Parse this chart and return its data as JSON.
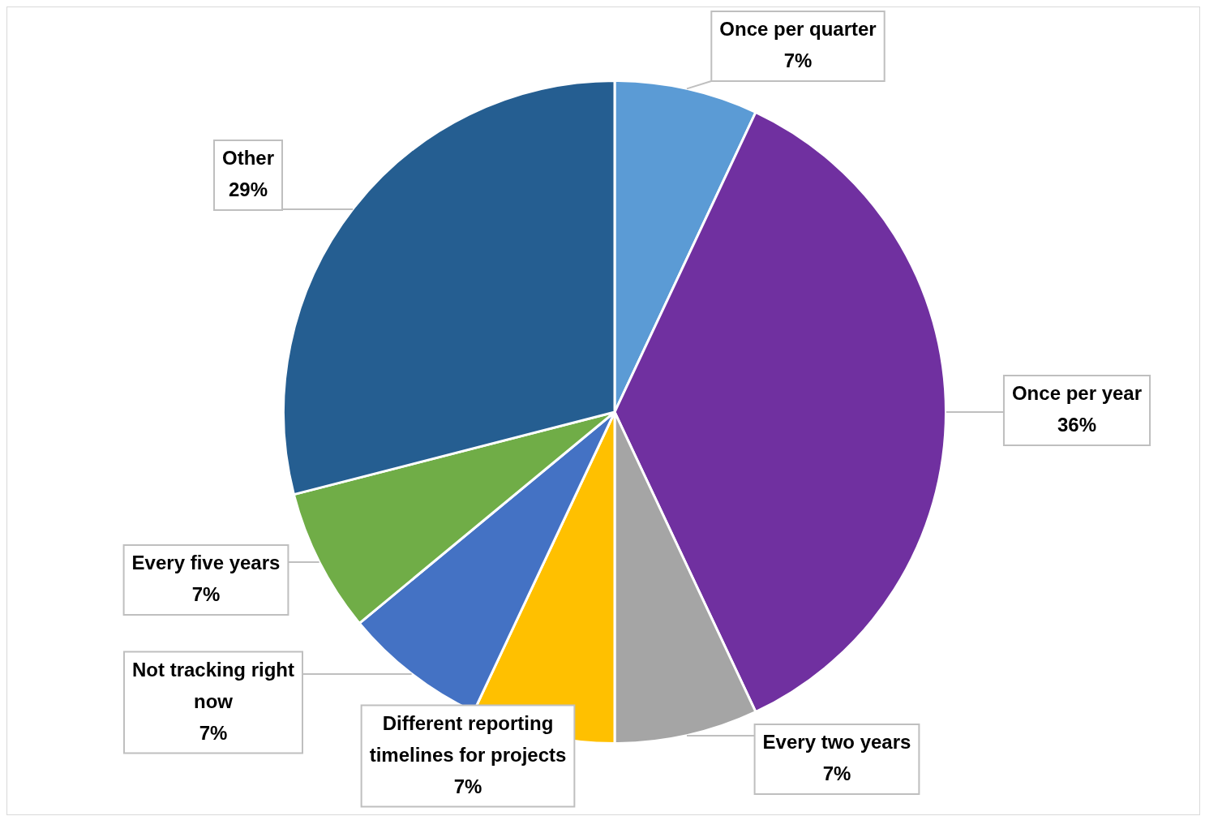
{
  "chart_data": {
    "type": "pie",
    "categories": [
      "Once per quarter",
      "Once per year",
      "Every two years",
      "Different reporting timelines for projects",
      "Not tracking right now",
      "Every five years",
      "Other"
    ],
    "values": [
      7,
      36,
      7,
      7,
      7,
      7,
      29
    ],
    "colors": [
      "#5b9bd5",
      "#7030a0",
      "#a5a5a5",
      "#ffc000",
      "#4472c4",
      "#70ad47",
      "#255e91"
    ],
    "value_labels": [
      "7%",
      "36%",
      "7%",
      "7%",
      "7%",
      "7%",
      "29%"
    ],
    "legend": false
  }
}
